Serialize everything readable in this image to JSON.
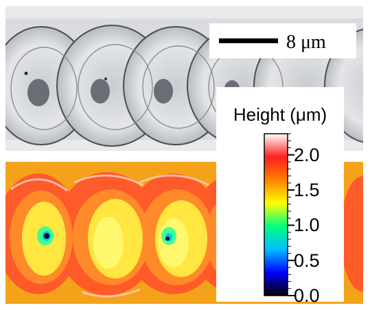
{
  "scalebar": {
    "label": "8 μm",
    "length_value": 8,
    "unit": "μm"
  },
  "colorbar": {
    "title": "Height (μm)",
    "min": 0.0,
    "max": 2.3,
    "ticks": [
      {
        "value": 0.0,
        "label": "0.0"
      },
      {
        "value": 0.5,
        "label": "0.5"
      },
      {
        "value": 1.0,
        "label": "1.0"
      },
      {
        "value": 1.5,
        "label": "1.5"
      },
      {
        "value": 2.0,
        "label": "2.0"
      }
    ],
    "colormap": [
      "#000000",
      "#0000ff",
      "#00bfff",
      "#00ff80",
      "#ffff00",
      "#ff8000",
      "#ff2020",
      "#ffffff"
    ]
  },
  "colors": {
    "optical_background": "#d6d8dc",
    "heightmap_background": "#f3a21a",
    "crater_rim": "#ff5a2a",
    "crater_inner": "#ffe640"
  }
}
